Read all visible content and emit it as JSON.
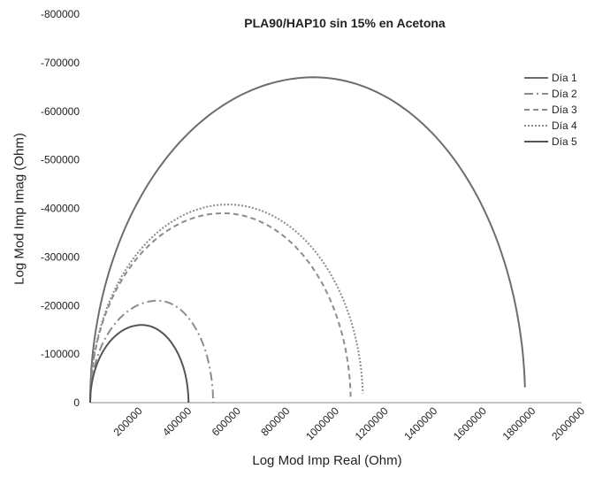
{
  "chart_data": {
    "type": "line",
    "title": "PLA90/HAP10 sin 15% en Acetona",
    "xlabel": "Log  Mod Imp Real (Ohm)",
    "ylabel": "Log Mod Imp Imag (Ohm)",
    "xlim": [
      0,
      2000000
    ],
    "ylim": [
      0,
      -800000
    ],
    "x_ticks": [
      "200000",
      "400000",
      "600000",
      "800000",
      "1000000",
      "1200000",
      "1400000",
      "1600000",
      "1800000",
      "2000000"
    ],
    "y_ticks": [
      "0",
      "-100000",
      "-200000",
      "-300000",
      "-400000",
      "-500000",
      "-600000",
      "-700000",
      "-800000"
    ],
    "grid": false,
    "legend_position": "right",
    "series": [
      {
        "name": "Día 1",
        "color": "#6d6d6d",
        "dash": "solid",
        "start": 0,
        "end": 1770000,
        "peak": 670000,
        "cx": 910000,
        "endFrac": 0.985
      },
      {
        "name": "Día 2",
        "color": "#8c8c8c",
        "dash": "dashdot",
        "start": 0,
        "end": 500000,
        "peak": 210000,
        "cx": 275000,
        "endFrac": 1.0
      },
      {
        "name": "Día 3",
        "color": "#8c8c8c",
        "dash": "dashed",
        "start": 0,
        "end": 1060000,
        "peak": 390000,
        "cx": 540000,
        "endFrac": 0.99
      },
      {
        "name": "Día 4",
        "color": "#8c8c8c",
        "dash": "dotted",
        "start": 0,
        "end": 1110000,
        "peak": 408000,
        "cx": 560000,
        "endFrac": 0.985
      },
      {
        "name": "Día 5",
        "color": "#555555",
        "dash": "solid",
        "start": 0,
        "end": 400000,
        "peak": 160000,
        "cx": 210000,
        "endFrac": 1.0
      }
    ]
  }
}
